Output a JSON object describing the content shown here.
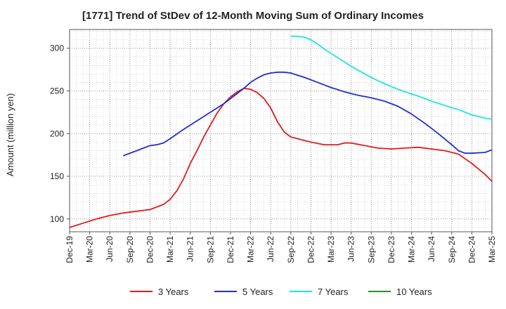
{
  "chart_data": {
    "type": "line",
    "title": "[1771]  Trend of StDev of 12-Month Moving Sum of Ordinary Incomes",
    "xlabel": "",
    "ylabel": "Amount (million yen)",
    "ylim": [
      85,
      322
    ],
    "yticks": [
      100,
      150,
      200,
      250,
      300
    ],
    "x_tick_labels": [
      "Dec-19",
      "Mar-20",
      "Jun-20",
      "Sep-20",
      "Dec-20",
      "Mar-21",
      "Jun-21",
      "Sep-21",
      "Dec-21",
      "Mar-22",
      "Jun-22",
      "Sep-22",
      "Dec-22",
      "Mar-23",
      "Jun-23",
      "Sep-23",
      "Dec-23",
      "Mar-24",
      "Jun-24",
      "Sep-24",
      "Dec-24",
      "Mar-25"
    ],
    "x_unit": "months since Dec-19",
    "xlim": [
      0,
      63
    ],
    "grid": true,
    "legend_position": "bottom",
    "series": [
      {
        "name": "3 Years",
        "color": "#e31a1c",
        "x": [
          0,
          2,
          4,
          6,
          8,
          10,
          12,
          14,
          15,
          16,
          17,
          18,
          19,
          20,
          21,
          22,
          23,
          24,
          25,
          26,
          27,
          28,
          29,
          30,
          31,
          32,
          33,
          34,
          35,
          36,
          38,
          40,
          41,
          42,
          44,
          46,
          48,
          50,
          52,
          54,
          56,
          58,
          60,
          62,
          63
        ],
        "y": [
          90,
          95,
          100,
          104,
          107,
          109,
          111,
          117,
          123,
          133,
          147,
          165,
          180,
          196,
          210,
          224,
          235,
          243,
          249,
          253,
          252,
          248,
          241,
          230,
          214,
          202,
          196,
          194,
          192,
          190,
          187,
          187,
          189,
          189,
          186,
          183,
          182,
          183,
          184,
          182,
          180,
          176,
          165,
          152,
          144
        ]
      },
      {
        "name": "5 Years",
        "color": "#1f2fd0",
        "x": [
          8,
          10,
          11,
          12,
          13,
          14,
          15,
          17,
          19,
          21,
          23,
          25,
          26,
          27,
          28,
          29,
          30,
          31,
          32,
          33,
          35,
          37,
          39,
          41,
          43,
          45,
          47,
          49,
          51,
          53,
          55,
          57,
          58,
          59,
          60,
          62,
          63
        ],
        "y": [
          174,
          180,
          183,
          186,
          187,
          189,
          194,
          205,
          215,
          225,
          235,
          247,
          253,
          260,
          265,
          269,
          271,
          272,
          272,
          271,
          266,
          260,
          254,
          249,
          245,
          242,
          238,
          232,
          223,
          212,
          200,
          187,
          180,
          177,
          177,
          178,
          181
        ]
      },
      {
        "name": "7 Years",
        "color": "#1ae6e6",
        "x": [
          33,
          34,
          35,
          36,
          37,
          38,
          40,
          42,
          44,
          46,
          48,
          50,
          52,
          54,
          56,
          58,
          60,
          62,
          63
        ],
        "y": [
          314,
          314,
          313,
          310,
          305,
          299,
          289,
          279,
          270,
          262,
          255,
          249,
          244,
          238,
          233,
          228,
          222,
          218,
          217
        ]
      },
      {
        "name": "10 Years",
        "color": "#2e8b2e",
        "x": [],
        "y": []
      }
    ]
  }
}
